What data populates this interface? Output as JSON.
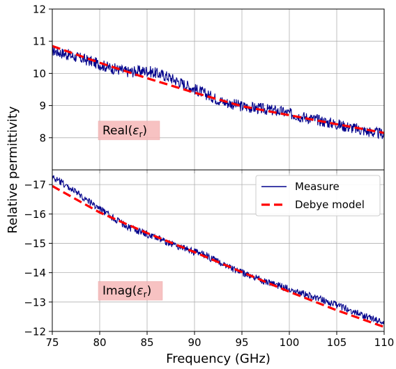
{
  "figure": {
    "ylabel": "Relative permittivity",
    "xlabel": "Frequency (GHz)"
  },
  "chart_data": [
    {
      "type": "line",
      "panel": "top",
      "annotation": "Real(εr)",
      "annotation_parts": {
        "base": "Real(",
        "eps": "ε",
        "sub": "r",
        "close": ")"
      },
      "annotation_color": "#f6b8b8",
      "xlim": [
        75,
        110
      ],
      "ylim": [
        7,
        12
      ],
      "x_ticks": [
        75,
        80,
        85,
        90,
        95,
        100,
        105,
        110
      ],
      "y_ticks": [
        8,
        9,
        10,
        11,
        12
      ],
      "y_tick_labels": [
        "8",
        "9",
        "10",
        "11",
        "12"
      ],
      "grid": true,
      "series": [
        {
          "name": "Measure",
          "style": "noisy-solid",
          "color": "#00008b",
          "x": [
            75,
            77,
            79,
            81,
            83,
            85,
            87,
            89,
            91,
            93,
            95,
            97,
            99,
            101,
            103,
            105,
            107,
            109,
            110
          ],
          "values": [
            10.72,
            10.55,
            10.38,
            10.18,
            10.05,
            10.08,
            9.92,
            9.65,
            9.38,
            9.12,
            8.98,
            8.9,
            8.82,
            8.68,
            8.55,
            8.42,
            8.28,
            8.15,
            8.12
          ],
          "noise_amplitude": 0.18
        },
        {
          "name": "Debye model",
          "style": "dashed",
          "color": "#ff0000",
          "x": [
            75,
            80,
            85,
            90,
            95,
            100,
            105,
            110
          ],
          "values": [
            10.85,
            10.33,
            9.85,
            9.4,
            8.98,
            8.7,
            8.42,
            8.15
          ]
        }
      ]
    },
    {
      "type": "line",
      "panel": "bottom",
      "annotation": "Imag(εr)",
      "annotation_parts": {
        "base": "Imag(",
        "eps": "ε",
        "sub": "r",
        "close": ")"
      },
      "annotation_color": "#f6b8b8",
      "xlim": [
        75,
        110
      ],
      "ylim": [
        -17.5,
        -12
      ],
      "y_inverted": true,
      "x_ticks": [
        75,
        80,
        85,
        90,
        95,
        100,
        105,
        110
      ],
      "x_tick_labels": [
        "75",
        "80",
        "85",
        "90",
        "95",
        "100",
        "105",
        "110"
      ],
      "y_ticks": [
        -17,
        -16,
        -15,
        -14,
        -13,
        -12
      ],
      "y_tick_labels": [
        "−17",
        "−16",
        "−15",
        "−14",
        "−13",
        "−12"
      ],
      "grid": true,
      "legend": {
        "position": "top-right",
        "entries": [
          {
            "label": "Measure",
            "style": "solid",
            "color": "#00008b"
          },
          {
            "label": "Debye model",
            "style": "dashed",
            "color": "#ff0000"
          }
        ]
      },
      "series": [
        {
          "name": "Measure",
          "style": "noisy-solid",
          "color": "#00008b",
          "x": [
            75,
            77,
            79,
            81,
            83,
            85,
            87,
            89,
            91,
            93,
            95,
            97,
            99,
            101,
            103,
            105,
            107,
            109,
            110
          ],
          "values": [
            -17.25,
            -16.85,
            -16.4,
            -15.95,
            -15.55,
            -15.3,
            -15.05,
            -14.82,
            -14.6,
            -14.3,
            -14.0,
            -13.75,
            -13.55,
            -13.35,
            -13.12,
            -12.9,
            -12.65,
            -12.4,
            -12.3
          ],
          "noise_amplitude": 0.12
        },
        {
          "name": "Debye model",
          "style": "dashed",
          "color": "#ff0000",
          "x": [
            75,
            80,
            85,
            90,
            95,
            100,
            105,
            110
          ],
          "values": [
            -16.95,
            -16.05,
            -15.35,
            -14.7,
            -14.02,
            -13.35,
            -12.72,
            -12.15
          ]
        }
      ]
    }
  ]
}
